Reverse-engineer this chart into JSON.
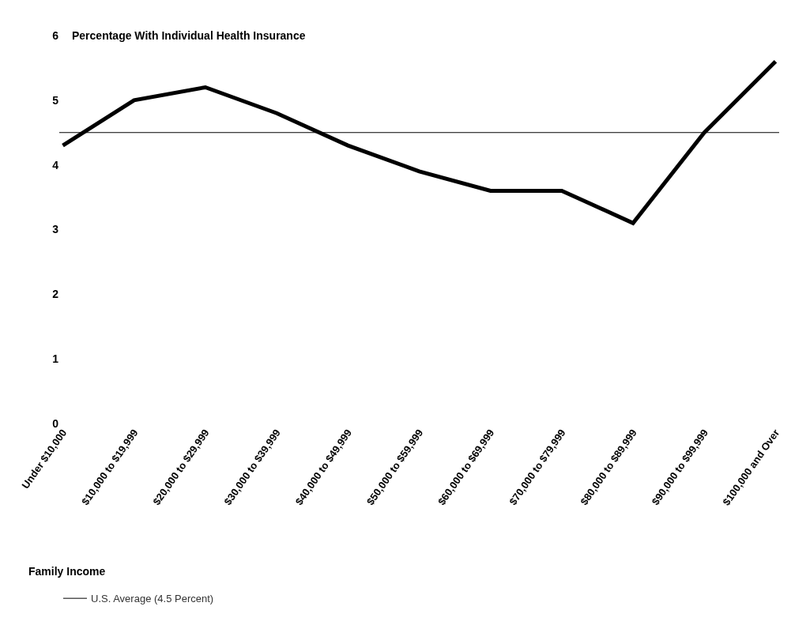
{
  "chart_data": {
    "type": "line",
    "title": "Percentage With Individual Health Insurance",
    "annotations": [
      "Family Income"
    ],
    "categories": [
      "Under $10,000",
      "$10,000 to $19,999",
      "$20,000 to $29,999",
      "$30,000 to $39,999",
      "$40,000 to $49,999",
      "$50,000 to $59,999",
      "$60,000 to $69,999",
      "$70,000 to $79,999",
      "$80,000 to $89,999",
      "$90,000 to $99,999",
      "$100,000 and Over"
    ],
    "series": [
      {
        "color": "#000000",
        "values": [
          4.3,
          5.0,
          5.2,
          4.8,
          4.3,
          3.9,
          3.6,
          3.6,
          3.1,
          4.5,
          5.6
        ]
      }
    ],
    "ylim": [
      0,
      6
    ],
    "yticks": [
      0,
      1,
      2,
      3,
      4,
      5,
      6
    ],
    "grid": false,
    "legend": "bottom left",
    "marker": "none",
    "line_style": "solid",
    "ref_lines": [
      {
        "axis": "y",
        "value": 4.5,
        "label": "U.S. Average (4.5 Percent)",
        "color": "#000000"
      }
    ]
  }
}
